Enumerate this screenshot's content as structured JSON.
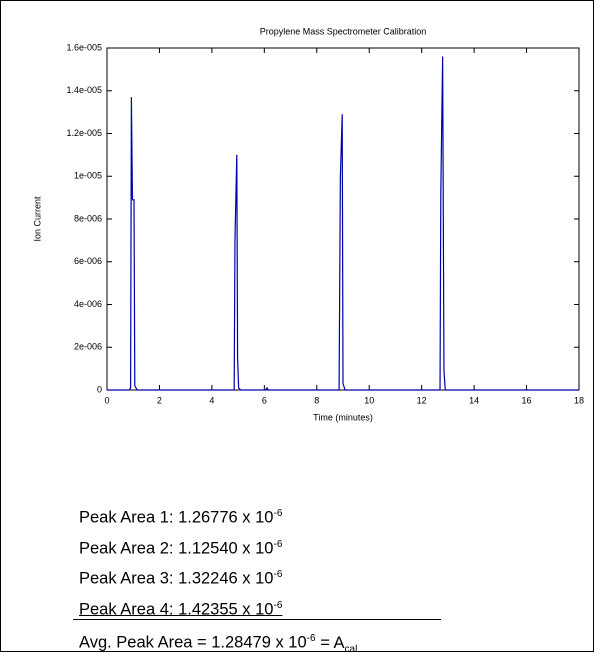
{
  "chart_data": {
    "type": "line",
    "title": "Propylene Mass Spectrometer Calibration",
    "x_label": "Time (minutes)",
    "y_label": "Ion Current",
    "x": [
      0,
      0.85,
      0.9,
      0.93,
      0.97,
      1.03,
      1.06,
      1.15,
      4.85,
      4.88,
      4.95,
      4.98,
      5.02,
      5.1,
      6.05,
      6.1,
      6.15,
      8.85,
      8.9,
      8.97,
      9.0,
      9.08,
      12.7,
      12.73,
      12.8,
      12.85,
      12.9,
      18
    ],
    "series": [
      {
        "color": "#0000aa",
        "values": [
          0,
          0,
          1e-07,
          1.37e-05,
          8.9e-06,
          8.9e-06,
          2e-07,
          0,
          0,
          7e-06,
          1.1e-05,
          1.5e-06,
          1e-07,
          0,
          0,
          1e-07,
          0,
          0,
          1e-05,
          1.29e-05,
          3e-07,
          0,
          0,
          9.2e-06,
          1.56e-05,
          9e-07,
          0,
          0
        ]
      }
    ],
    "xlim": [
      0,
      18
    ],
    "xticks": [
      0,
      2,
      4,
      6,
      8,
      10,
      12,
      14,
      16,
      18
    ],
    "ylim": [
      0,
      1.6e-05
    ],
    "yticks": [
      0,
      {
        "value": 2e-06,
        "label": "2e-006"
      },
      {
        "value": 4e-06,
        "label": "4e-006"
      },
      {
        "value": 6e-06,
        "label": "6e-006"
      },
      {
        "value": 8e-06,
        "label": "8e-006"
      },
      {
        "value": 1e-05,
        "label": "1e-005"
      },
      {
        "value": 1.2e-05,
        "label": "1.2e-005"
      },
      {
        "value": 1.4e-05,
        "label": "1.4e-005"
      },
      {
        "value": 1.6e-05,
        "label": "1.6e-005"
      }
    ],
    "grid": false
  },
  "peak_areas": [
    {
      "text": "Peak Area 1: 1.26776 x 10",
      "exponent": "-6"
    },
    {
      "text": "Peak Area 2: 1.12540 x 10",
      "exponent": "-6"
    },
    {
      "text": "Peak Area 3: 1.32246 x 10",
      "exponent": "-6"
    },
    {
      "text": "Peak Area 4: 1.42355 x 10",
      "exponent": "-6"
    }
  ],
  "average": {
    "text": "Avg. Peak Area = 1.28479 x 10",
    "exponent": "-6",
    "suffix": "= A",
    "subscript": "cal"
  }
}
